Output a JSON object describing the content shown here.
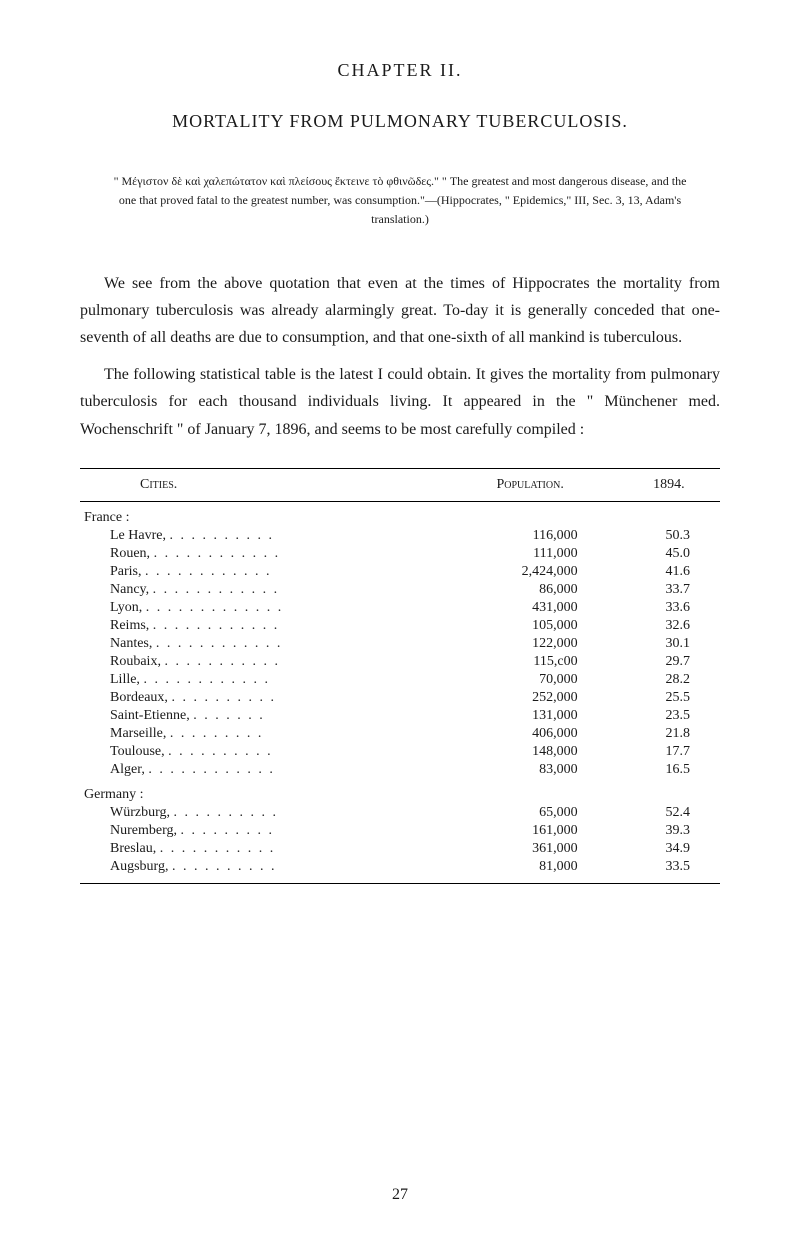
{
  "chapter": {
    "heading": "CHAPTER II.",
    "title": "MORTALITY FROM PULMONARY TUBERCULOSIS."
  },
  "epigraph": "\" Μέγιστον δὲ καὶ χαλεπώτατον καὶ πλείσους ἔκτεινε τὸ φθινῶδες.\"  \" The greatest and most dangerous disease, and the one that proved fatal to the greatest number, was consumption.\"—(Hippocrates, \" Epidemics,\" III, Sec. 3, 13, Adam's translation.)",
  "paragraphs": {
    "p1": "We see from the above quotation that even at the times of Hippocrates the mortality from pulmonary tuberculosis was already alarmingly great. To-day it is generally conceded that one-seventh of all deaths are due to consumption, and that one-sixth of all mankind is tuberculous.",
    "p2": "The following statistical table is the latest I could obtain. It gives the mortality from pulmonary tuberculosis for each thousand individuals living. It appeared in the \" Münchener med. Wochenschrift \" of January 7, 1896, and seems to be most carefully compiled :"
  },
  "table": {
    "headers": {
      "cities": "Cities.",
      "population": "Population.",
      "year": "1894."
    },
    "sections": [
      {
        "label": "France :",
        "rows": [
          {
            "city": "Le Havre,",
            "population": "116,000",
            "value": "50.3"
          },
          {
            "city": "Rouen,",
            "population": "111,000",
            "value": "45.0"
          },
          {
            "city": "Paris,",
            "population": "2,424,000",
            "value": "41.6"
          },
          {
            "city": "Nancy,",
            "population": "86,000",
            "value": "33.7"
          },
          {
            "city": "Lyon,",
            "population": "431,000",
            "value": "33.6"
          },
          {
            "city": "Reims,",
            "population": "105,000",
            "value": "32.6"
          },
          {
            "city": "Nantes,",
            "population": "122,000",
            "value": "30.1"
          },
          {
            "city": "Roubaix,",
            "population": "115,c00",
            "value": "29.7"
          },
          {
            "city": "Lille,",
            "population": "70,000",
            "value": "28.2"
          },
          {
            "city": "Bordeaux,",
            "population": "252,000",
            "value": "25.5"
          },
          {
            "city": "Saint-Etienne,",
            "population": "131,000",
            "value": "23.5"
          },
          {
            "city": "Marseille,",
            "population": "406,000",
            "value": "21.8"
          },
          {
            "city": "Toulouse,",
            "population": "148,000",
            "value": "17.7"
          },
          {
            "city": "Alger,",
            "population": "83,000",
            "value": "16.5"
          }
        ]
      },
      {
        "label": "Germany :",
        "rows": [
          {
            "city": "Würzburg,",
            "population": "65,000",
            "value": "52.4"
          },
          {
            "city": "Nuremberg,",
            "population": "161,000",
            "value": "39.3"
          },
          {
            "city": "Breslau,",
            "population": "361,000",
            "value": "34.9"
          },
          {
            "city": "Augsburg,",
            "population": "81,000",
            "value": "33.5"
          }
        ]
      }
    ]
  },
  "pageNumber": "27",
  "colors": {
    "background": "#ffffff",
    "text": "#1a1a1a",
    "border": "#000000"
  },
  "typography": {
    "bodyFontSize": 16,
    "headingFontSize": 18,
    "tableFontSize": 14,
    "epigraphFontSize": 12,
    "fontFamily": "Georgia, Times New Roman, serif"
  }
}
